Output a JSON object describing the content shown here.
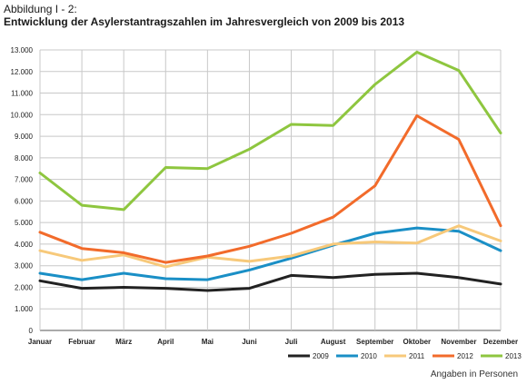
{
  "header": {
    "label": "Abbildung I - 2:",
    "title": "Entwicklung der Asylerstantragszahlen im Jahresvergleich von 2009 bis 2013"
  },
  "footnote": "Angaben in Personen",
  "chart_data": {
    "type": "line",
    "title": "Entwicklung der Asylerstantragszahlen im Jahresvergleich von 2009 bis 2013",
    "xlabel": "",
    "ylabel": "",
    "categories": [
      "Januar",
      "Februar",
      "März",
      "April",
      "Mai",
      "Juni",
      "Juli",
      "August",
      "September",
      "Oktober",
      "November",
      "Dezember"
    ],
    "ylim": [
      0,
      13000
    ],
    "yticks": [
      0,
      1000,
      2000,
      3000,
      4000,
      5000,
      6000,
      7000,
      8000,
      9000,
      10000,
      11000,
      12000,
      13000
    ],
    "ytick_labels": [
      "0",
      "1.000",
      "2.000",
      "3.000",
      "4.000",
      "5.000",
      "6.000",
      "7.000",
      "8.000",
      "9.000",
      "10.000",
      "11.000",
      "12.000",
      "13.000"
    ],
    "grid": "vertical and horizontal",
    "legend_position": "bottom-right",
    "series": [
      {
        "name": "2009",
        "color": "#222222",
        "values": [
          2300,
          1950,
          2000,
          1950,
          1850,
          1950,
          2550,
          2450,
          2600,
          2650,
          2450,
          2150
        ]
      },
      {
        "name": "2010",
        "color": "#1a8fc6",
        "values": [
          2650,
          2350,
          2650,
          2400,
          2350,
          2800,
          3350,
          3950,
          4500,
          4750,
          4600,
          3700
        ]
      },
      {
        "name": "2011",
        "color": "#f7c97a",
        "values": [
          3700,
          3250,
          3500,
          2950,
          3400,
          3200,
          3450,
          4000,
          4100,
          4050,
          4850,
          4150
        ]
      },
      {
        "name": "2012",
        "color": "#f26b2b",
        "values": [
          4550,
          3800,
          3600,
          3150,
          3450,
          3900,
          4500,
          5250,
          6700,
          9950,
          8850,
          4850
        ]
      },
      {
        "name": "2013",
        "color": "#8ec63f",
        "values": [
          7300,
          5800,
          5600,
          7550,
          7500,
          8400,
          9550,
          9500,
          11400,
          12900,
          12050,
          9150
        ]
      }
    ]
  }
}
